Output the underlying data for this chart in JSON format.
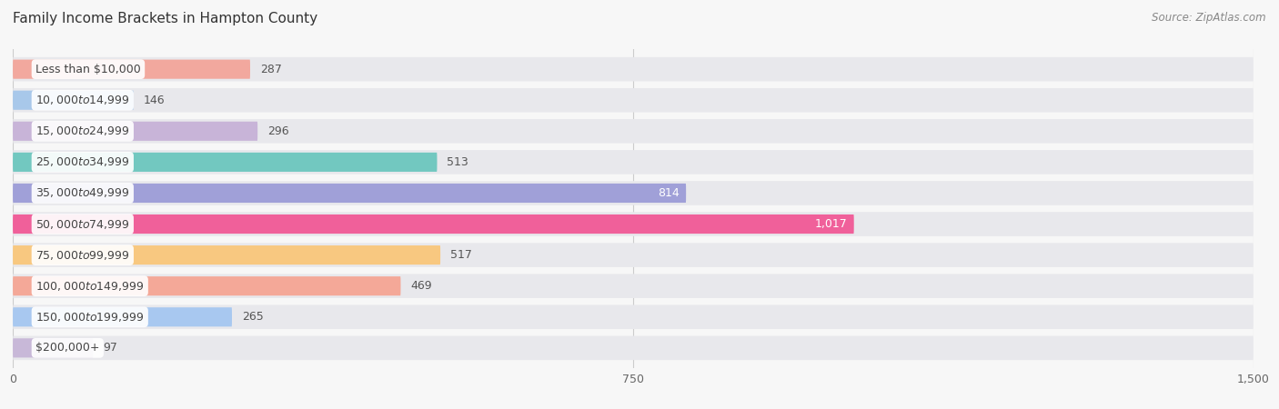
{
  "title": "Family Income Brackets in Hampton County",
  "source": "Source: ZipAtlas.com",
  "categories": [
    "Less than $10,000",
    "$10,000 to $14,999",
    "$15,000 to $24,999",
    "$25,000 to $34,999",
    "$35,000 to $49,999",
    "$50,000 to $74,999",
    "$75,000 to $99,999",
    "$100,000 to $149,999",
    "$150,000 to $199,999",
    "$200,000+"
  ],
  "values": [
    287,
    146,
    296,
    513,
    814,
    1017,
    517,
    469,
    265,
    97
  ],
  "bar_colors": [
    "#F2A89E",
    "#A8C8EA",
    "#C8B4D8",
    "#72C8C0",
    "#A0A0D8",
    "#F0609A",
    "#F8C880",
    "#F4A898",
    "#A8C8F0",
    "#C8B8D8"
  ],
  "bg_bar_color": "#E8E8EC",
  "xlim_max": 1500,
  "xticks": [
    0,
    750,
    1500
  ],
  "xtick_labels": [
    "0",
    "750",
    "1,500"
  ],
  "background_color": "#f7f7f7",
  "title_fontsize": 11,
  "source_fontsize": 8.5,
  "label_fontsize": 9,
  "value_fontsize": 9,
  "value_color_inside": "#ffffff",
  "value_color_outside": "#555555",
  "bar_height": 0.62,
  "bg_bar_height": 0.78
}
